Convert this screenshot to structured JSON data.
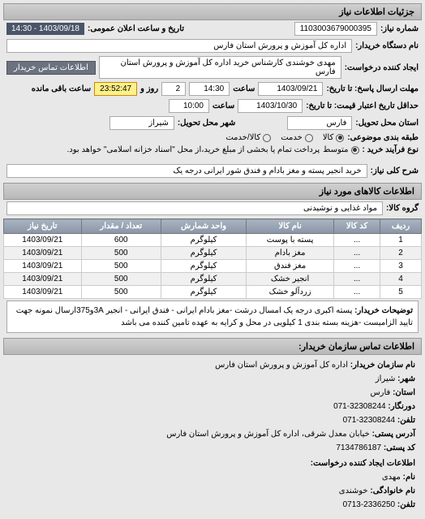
{
  "header": {
    "title": "جزئیات اطلاعات نیاز"
  },
  "request": {
    "number_label": "شماره نیاز:",
    "number": "1103003679000395",
    "announce_label": "تاریخ و ساعت اعلان عمومی:",
    "announce_value": "1403/09/18 - 14:30",
    "buyer_label": "نام دستگاه خریدار:",
    "buyer_value": "اداره کل آموزش و پرورش استان فارس",
    "creator_label": "ایجاد کننده درخواست:",
    "creator_value": "مهدی خوشندی کارشناس خرید اداره کل آموزش و پرورش استان فارس",
    "contact_button": "اطلاعات تماس خریدار",
    "deadline_label": "مهلت ارسال پاسخ: تا تاریخ:",
    "deadline_date": "1403/09/21",
    "time_label": "ساعت",
    "deadline_time": "14:30",
    "days_remain_label": "روز و",
    "days_remain": "2",
    "hours_remain": "23:52:47",
    "remain_suffix": "ساعت باقی مانده",
    "validity_label": "حداقل تاریخ اعتبار قیمت: تا تاریخ:",
    "validity_date": "1403/10/30",
    "validity_time": "10:00",
    "province_label": "استان محل تحویل:",
    "province": "فارس",
    "city_label": "شهر محل تحویل:",
    "city": "شیراز",
    "category_label": "طبقه بندی موضوعی:",
    "radio_kala": "کالا",
    "radio_service": "خدمت",
    "radio_both": "کالا/خدمت",
    "process_label": "نوع فرآیند خرید :",
    "radio_medium": "متوسط",
    "process_note": "پرداخت تمام یا بخشی از مبلغ خرید،از محل \"اسناد خزانه اسلامی\" خواهد بود.",
    "summary_label": "شرح کلی نیاز:",
    "summary_value": "خرید انجیر پسته و مغز بادام و فندق شور ایرانی درجه یک"
  },
  "goods": {
    "header": "اطلاعات کالاهای مورد نیاز",
    "group_label": "گروه کالا:",
    "group_value": "مواد غذایی و نوشیدنی",
    "columns": [
      "ردیف",
      "کد کالا",
      "نام کالا",
      "واحد شمارش",
      "تعداد / مقدار",
      "تاریخ نیاز"
    ],
    "rows": [
      {
        "idx": "1",
        "code": "...",
        "name": "پسته با پوست",
        "unit": "کیلوگرم",
        "qty": "600",
        "date": "1403/09/21"
      },
      {
        "idx": "2",
        "code": "...",
        "name": "مغز بادام",
        "unit": "کیلوگرم",
        "qty": "500",
        "date": "1403/09/21"
      },
      {
        "idx": "3",
        "code": "...",
        "name": "مغز فندق",
        "unit": "کیلوگرم",
        "qty": "500",
        "date": "1403/09/21"
      },
      {
        "idx": "4",
        "code": "...",
        "name": "انجیر خشک",
        "unit": "کیلوگرم",
        "qty": "500",
        "date": "1403/09/21"
      },
      {
        "idx": "5",
        "code": "...",
        "name": "زردآلو خشک",
        "unit": "کیلوگرم",
        "qty": "500",
        "date": "1403/09/21"
      }
    ],
    "desc_label": "توضیحات خریدار:",
    "desc_value": "پسته اکبری درجه یک امسال درشت -مغز بادام ایرانی - فندق ایرانی - انجیر 3Aو375ارسال نمونه جهت تایید الزامیست -هزینه بسته بندی 1 کیلویی در محل و کرایه به عهده تامین کننده می باشد"
  },
  "contact": {
    "header": "اطلاعات تماس سازمان خریدار:",
    "org_label": "نام سازمان خریدار:",
    "org_value": "اداره کل آموزش و پرورش استان فارس",
    "city_label": "شهر:",
    "city_value": "شیراز",
    "province_label": "استان:",
    "province_value": "فارس",
    "fax_label": "دورنگار:",
    "fax_value": "32308244-071",
    "phone_label": "تلفن:",
    "phone_value": "32308244-071",
    "address_label": "آدرس پستی:",
    "address_value": "خیابان معدل شرقی، اداره کل آموزش و پرورش استان فارس",
    "postal_label": "کد پستی:",
    "postal_value": "7134786187",
    "creator_header": "اطلاعات ایجاد کننده درخواست:",
    "name_label": "نام:",
    "name_value": "مهدی",
    "lastname_label": "نام خانوادگی:",
    "lastname_value": "خوشندی",
    "cphone_label": "تلفن:",
    "cphone_value": "2336250-0713"
  }
}
